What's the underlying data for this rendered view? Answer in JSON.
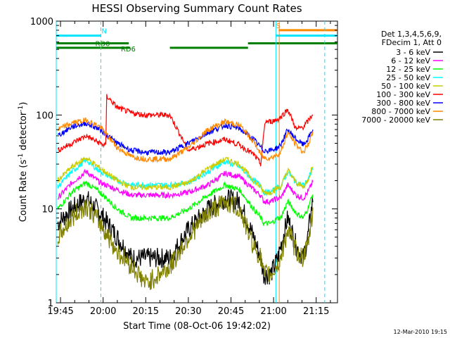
{
  "chart_data": {
    "type": "line",
    "title": "HESSI Observing Summary Count Rates",
    "xlabel": "Start Time (08-Oct-06 19:42:02)",
    "ylabel_main": "Count Rate (s",
    "ylabel_sup1": "-1",
    "ylabel_mid": " detector",
    "ylabel_sup2": "-1",
    "ylabel_end": ")",
    "y_scale": "log",
    "ylim": [
      1,
      1000
    ],
    "xlim_minutes": [
      -1.5,
      97.5
    ],
    "x_ticks": [
      {
        "label": "19:45",
        "m": 0
      },
      {
        "label": "20:00",
        "m": 15
      },
      {
        "label": "20:15",
        "m": 30
      },
      {
        "label": "20:30",
        "m": 45
      },
      {
        "label": "20:45",
        "m": 60
      },
      {
        "label": "21:00",
        "m": 75
      },
      {
        "label": "21:15",
        "m": 90
      }
    ],
    "y_ticks": [
      {
        "label": "1",
        "v": 1
      },
      {
        "label": "10",
        "v": 10
      },
      {
        "label": "100",
        "v": 100
      },
      {
        "label": "1000",
        "v": 1000
      }
    ],
    "legend_header": [
      "Det 1,3,4,5,6,9,",
      "FDecim 1, Att 0"
    ],
    "legend_placement": "right",
    "series": [
      {
        "name": "3 - 6 keV",
        "color": "#000000",
        "x_minutes": [
          -1.0,
          4.0,
          9.0,
          14.0,
          20.0,
          25.0,
          30.0,
          38.5,
          45.0,
          52.0,
          58.0,
          63.0,
          68.0,
          70.5,
          71.5,
          74.0,
          76.5,
          77.5,
          80.0,
          83.0,
          85.5,
          87.0,
          89.0
        ],
        "values": [
          7,
          10,
          13,
          9,
          5,
          3,
          3,
          3,
          6,
          10,
          13,
          12,
          5,
          3,
          2,
          2,
          3,
          4,
          8,
          4,
          3,
          5,
          14
        ]
      },
      {
        "name": "6 - 12 keV",
        "color": "#ff00ff",
        "x_minutes": [
          -1.0,
          4.0,
          9.0,
          14.0,
          20.0,
          25.0,
          30.0,
          38.5,
          45.0,
          52.0,
          58.0,
          63.0,
          68.0,
          70.5,
          71.5,
          74.0,
          76.5,
          77.5,
          80.0,
          83.0,
          85.5,
          87.0,
          89.0
        ],
        "values": [
          13,
          19,
          25,
          19,
          16,
          14,
          14,
          14,
          15,
          18,
          24,
          22,
          16,
          14,
          12,
          12,
          13,
          13,
          18,
          14,
          13,
          15,
          20
        ]
      },
      {
        "name": "12 - 25 keV",
        "color": "#00ff00",
        "x_minutes": [
          -1.0,
          4.0,
          9.0,
          14.0,
          20.0,
          25.0,
          30.0,
          38.5,
          45.0,
          52.0,
          58.0,
          63.0,
          68.0,
          70.5,
          71.5,
          74.0,
          76.5,
          77.5,
          80.0,
          83.0,
          85.5,
          87.0,
          89.0
        ],
        "values": [
          10,
          15,
          19,
          15,
          10,
          8,
          8,
          8,
          10,
          14,
          18,
          16,
          10,
          8,
          7,
          7,
          8,
          8,
          12,
          9,
          8,
          10,
          15
        ]
      },
      {
        "name": "25 - 50 keV",
        "color": "#00ffff",
        "x_minutes": [
          -1.0,
          4.0,
          9.0,
          14.0,
          20.0,
          25.0,
          30.0,
          38.5,
          45.0,
          52.0,
          58.0,
          63.0,
          68.0,
          70.5,
          71.5,
          74.0,
          76.5,
          77.5,
          80.0,
          83.0,
          85.5,
          87.0,
          89.0
        ],
        "values": [
          17,
          25,
          33,
          25,
          20,
          18,
          18,
          18,
          19,
          25,
          32,
          28,
          20,
          18,
          15,
          15,
          17,
          17,
          25,
          19,
          18,
          20,
          28
        ]
      },
      {
        "name": "50 - 100 keV",
        "color": "#cccc00",
        "x_minutes": [
          -1.0,
          4.0,
          9.0,
          14.0,
          20.0,
          25.0,
          30.0,
          38.5,
          45.0,
          52.0,
          58.0,
          63.0,
          68.0,
          70.5,
          71.5,
          74.0,
          76.5,
          77.5,
          80.0,
          83.0,
          85.5,
          87.0,
          89.0
        ],
        "values": [
          20,
          28,
          35,
          27,
          20,
          17,
          17,
          17,
          19,
          27,
          34,
          30,
          20,
          17,
          15,
          15,
          17,
          17,
          26,
          19,
          17,
          20,
          30
        ]
      },
      {
        "name": "100 - 300 keV",
        "color": "#ff0000",
        "x_minutes": [
          -1.0,
          4.0,
          9.0,
          14.0,
          16.0,
          16.2,
          20.0,
          25.0,
          30.0,
          38.5,
          45.0,
          52.0,
          58.0,
          63.0,
          68.0,
          70.5,
          72.0,
          74.0,
          76.5,
          77.5,
          80.0,
          83.0,
          85.5,
          87.0,
          89.0
        ],
        "values": [
          42,
          50,
          60,
          50,
          47,
          160,
          120,
          105,
          100,
          100,
          42,
          50,
          55,
          48,
          38,
          30,
          85,
          85,
          90,
          95,
          115,
          70,
          75,
          85,
          105
        ]
      },
      {
        "name": "300 - 800 keV",
        "color": "#0000ff",
        "x_minutes": [
          -1.0,
          4.0,
          9.0,
          14.0,
          20.0,
          25.0,
          30.0,
          38.5,
          45.0,
          52.0,
          58.0,
          63.0,
          68.0,
          70.5,
          71.5,
          74.0,
          76.5,
          77.5,
          80.0,
          83.0,
          85.5,
          87.0,
          89.0
        ],
        "values": [
          60,
          75,
          82,
          70,
          50,
          42,
          40,
          40,
          50,
          65,
          78,
          72,
          55,
          45,
          42,
          42,
          45,
          48,
          70,
          55,
          48,
          55,
          72
        ]
      },
      {
        "name": "800 - 7000 keV",
        "color": "#ff8800",
        "x_minutes": [
          -1.0,
          4.0,
          9.0,
          14.0,
          20.0,
          25.0,
          30.0,
          38.5,
          45.0,
          52.0,
          58.0,
          63.0,
          68.0,
          70.5,
          71.5,
          74.0,
          76.5,
          77.5,
          80.0,
          83.0,
          85.5,
          87.0,
          89.0
        ],
        "values": [
          70,
          82,
          88,
          75,
          45,
          36,
          34,
          34,
          45,
          70,
          85,
          78,
          52,
          38,
          35,
          35,
          38,
          40,
          65,
          48,
          40,
          48,
          65
        ]
      },
      {
        "name": "7000 - 20000 keV",
        "color": "#808000",
        "x_minutes": [
          -1.0,
          4.0,
          9.0,
          14.0,
          20.0,
          25.0,
          30.0,
          38.5,
          45.0,
          52.0,
          58.0,
          63.0,
          68.0,
          70.5,
          71.5,
          74.0,
          76.5,
          77.5,
          80.0,
          83.0,
          85.5,
          87.0,
          89.0
        ],
        "values": [
          5,
          8,
          11,
          7,
          3.5,
          2.5,
          1.6,
          2.4,
          5,
          9,
          12,
          10,
          4,
          3,
          2,
          2,
          2.5,
          3,
          6,
          3.5,
          3,
          4,
          10
        ]
      }
    ],
    "flag_bars": [
      {
        "label": "N",
        "color": "#00e5ff",
        "start_m": -1.5,
        "end_m": 14.2,
        "level": 700,
        "label_m": 14.2
      },
      {
        "label": "RD0",
        "color": "#008000",
        "start_m": -1.5,
        "end_m": 24.0,
        "level": 580,
        "label_m": 12.0
      },
      {
        "label": "RD6",
        "color": "#008000",
        "start_m": -1.5,
        "end_m": 24.5,
        "level": 520,
        "label_m": 21.0
      },
      {
        "label": "",
        "color": "#008000",
        "start_m": 38.5,
        "end_m": 66.0,
        "level": 520,
        "label_m": 0
      },
      {
        "label": "",
        "color": "#008000",
        "start_m": 66.0,
        "end_m": 97.5,
        "level": 580,
        "label_m": 0
      },
      {
        "label": "S",
        "color": "#ff8800",
        "start_m": 76.8,
        "end_m": 97.5,
        "level": 800,
        "label_m": 75.6
      },
      {
        "label": "",
        "color": "#00e5ff",
        "start_m": 75.8,
        "end_m": 97.5,
        "level": 700,
        "label_m": 0
      }
    ],
    "vertical_lines": [
      {
        "m": -1.5,
        "color": "#00e5ff",
        "style": "solid"
      },
      {
        "m": 14.2,
        "color": "#00e5ff",
        "style": "dashed"
      },
      {
        "m": 75.8,
        "color": "#00e5ff",
        "style": "solid"
      },
      {
        "m": 77.0,
        "color": "#ff8800",
        "style": "solid"
      },
      {
        "m": 93.0,
        "color": "#00e5ff",
        "style": "dashed"
      }
    ]
  },
  "footer_date": "12-Mar-2010 19:15"
}
